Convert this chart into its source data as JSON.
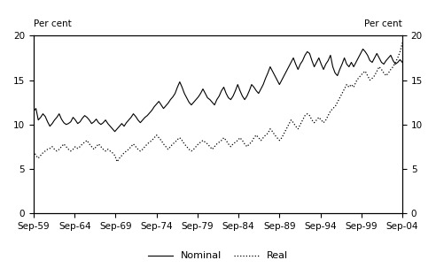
{
  "ylim": [
    0,
    20
  ],
  "yticks": [
    0,
    5,
    10,
    15,
    20
  ],
  "xtick_labels": [
    "Sep-59",
    "Sep-64",
    "Sep-69",
    "Sep-74",
    "Sep-79",
    "Sep-84",
    "Sep-89",
    "Sep-94",
    "Sep-99",
    "Sep-04"
  ],
  "nominal_color": "#000000",
  "real_color": "#000000",
  "nominal_linestyle": "solid",
  "real_linestyle": "dotted",
  "nominal_linewidth": 0.8,
  "real_linewidth": 0.9,
  "legend_nominal": "Nominal",
  "legend_real": "Real",
  "label_per_cent": "Per cent",
  "background_color": "#ffffff",
  "nominal": [
    11.5,
    11.8,
    10.5,
    10.8,
    11.2,
    10.9,
    10.3,
    9.8,
    10.1,
    10.5,
    10.8,
    11.2,
    10.6,
    10.2,
    10.0,
    10.1,
    10.3,
    10.8,
    10.5,
    10.1,
    10.3,
    10.7,
    11.0,
    10.8,
    10.5,
    10.1,
    10.3,
    10.6,
    10.2,
    10.0,
    10.2,
    10.5,
    10.1,
    9.8,
    9.5,
    9.2,
    9.5,
    9.8,
    10.1,
    9.8,
    10.2,
    10.5,
    10.8,
    11.2,
    10.9,
    10.5,
    10.2,
    10.5,
    10.8,
    11.0,
    11.3,
    11.6,
    12.0,
    12.3,
    12.6,
    12.2,
    11.8,
    12.1,
    12.4,
    12.8,
    13.1,
    13.5,
    14.2,
    14.8,
    14.2,
    13.5,
    13.0,
    12.5,
    12.2,
    12.5,
    12.8,
    13.1,
    13.5,
    14.0,
    13.5,
    13.0,
    12.8,
    12.5,
    12.2,
    12.8,
    13.2,
    13.8,
    14.2,
    13.5,
    13.0,
    12.8,
    13.2,
    13.8,
    14.5,
    13.8,
    13.2,
    12.8,
    13.2,
    13.8,
    14.5,
    14.2,
    13.8,
    13.5,
    14.0,
    14.5,
    15.2,
    15.8,
    16.5,
    16.0,
    15.5,
    15.0,
    14.5,
    15.0,
    15.5,
    16.0,
    16.5,
    17.0,
    17.5,
    16.8,
    16.2,
    16.8,
    17.2,
    17.8,
    18.2,
    18.0,
    17.2,
    16.5,
    17.0,
    17.5,
    16.8,
    16.2,
    16.8,
    17.2,
    17.8,
    16.5,
    15.8,
    15.5,
    16.2,
    16.8,
    17.5,
    16.8,
    16.5,
    17.0,
    16.5,
    17.0,
    17.5,
    18.0,
    18.5,
    18.2,
    17.8,
    17.2,
    17.0,
    17.5,
    18.0,
    17.5,
    17.0,
    16.8,
    17.2,
    17.5,
    17.8,
    17.2,
    16.8,
    17.0,
    17.3,
    17.0
  ],
  "real": [
    7.0,
    6.5,
    6.2,
    6.5,
    6.8,
    7.0,
    7.2,
    7.3,
    7.5,
    7.2,
    7.0,
    7.2,
    7.5,
    7.8,
    7.5,
    7.2,
    7.0,
    7.2,
    7.5,
    7.3,
    7.5,
    7.8,
    8.0,
    8.2,
    7.8,
    7.5,
    7.2,
    7.5,
    7.8,
    7.5,
    7.2,
    7.0,
    7.2,
    7.0,
    6.8,
    6.5,
    5.8,
    6.2,
    6.5,
    6.8,
    7.0,
    7.2,
    7.5,
    7.8,
    7.5,
    7.2,
    7.0,
    7.2,
    7.5,
    7.8,
    8.0,
    8.2,
    8.5,
    8.8,
    8.5,
    8.2,
    7.8,
    7.5,
    7.2,
    7.5,
    7.8,
    8.0,
    8.3,
    8.5,
    8.2,
    7.8,
    7.5,
    7.2,
    7.0,
    7.2,
    7.5,
    7.8,
    8.0,
    8.2,
    8.0,
    7.8,
    7.5,
    7.2,
    7.5,
    7.8,
    8.0,
    8.2,
    8.5,
    8.2,
    7.8,
    7.5,
    7.8,
    8.0,
    8.2,
    8.5,
    8.2,
    7.8,
    7.5,
    7.8,
    8.0,
    8.5,
    8.8,
    8.5,
    8.2,
    8.5,
    8.8,
    9.0,
    9.5,
    9.2,
    8.8,
    8.5,
    8.2,
    8.5,
    9.0,
    9.5,
    10.0,
    10.5,
    10.2,
    9.8,
    9.5,
    10.0,
    10.5,
    11.0,
    11.2,
    11.0,
    10.5,
    10.2,
    10.5,
    10.8,
    10.5,
    10.2,
    10.5,
    11.0,
    11.5,
    11.8,
    12.0,
    12.5,
    13.0,
    13.5,
    14.0,
    14.5,
    14.2,
    14.5,
    14.2,
    14.8,
    15.2,
    15.5,
    15.8,
    16.0,
    15.5,
    15.0,
    15.2,
    15.5,
    16.0,
    16.5,
    16.2,
    15.8,
    15.5,
    15.8,
    16.2,
    16.5,
    17.0,
    17.5,
    18.2,
    19.2
  ]
}
